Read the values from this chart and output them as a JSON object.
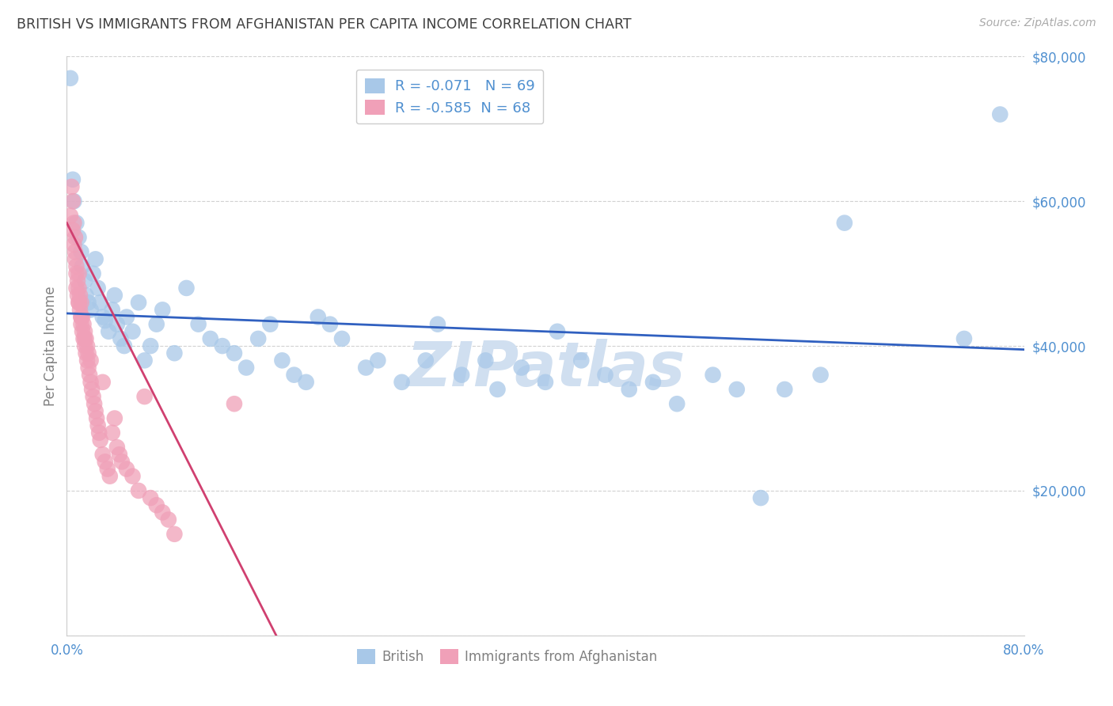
{
  "title": "BRITISH VS IMMIGRANTS FROM AFGHANISTAN PER CAPITA INCOME CORRELATION CHART",
  "source": "Source: ZipAtlas.com",
  "ylabel": "Per Capita Income",
  "xlim": [
    0.0,
    0.8
  ],
  "ylim": [
    0,
    80000
  ],
  "yticks": [
    0,
    20000,
    40000,
    60000,
    80000
  ],
  "xticks": [
    0.0,
    0.2,
    0.4,
    0.6,
    0.8
  ],
  "xtick_labels": [
    "0.0%",
    "",
    "",
    "",
    "80.0%"
  ],
  "british_R": -0.071,
  "british_N": 69,
  "afghan_R": -0.585,
  "afghan_N": 68,
  "blue_color": "#a8c8e8",
  "pink_color": "#f0a0b8",
  "blue_line_color": "#3060c0",
  "pink_line_color": "#d04070",
  "title_color": "#404040",
  "axis_label_color": "#808080",
  "tick_color": "#5090d0",
  "watermark_color": "#d0dff0",
  "background_color": "#ffffff",
  "british_x": [
    0.003,
    0.005,
    0.006,
    0.008,
    0.01,
    0.012,
    0.013,
    0.015,
    0.016,
    0.018,
    0.02,
    0.022,
    0.024,
    0.026,
    0.028,
    0.03,
    0.032,
    0.035,
    0.038,
    0.04,
    0.042,
    0.045,
    0.048,
    0.05,
    0.055,
    0.06,
    0.065,
    0.07,
    0.075,
    0.08,
    0.09,
    0.1,
    0.11,
    0.12,
    0.13,
    0.14,
    0.15,
    0.16,
    0.17,
    0.18,
    0.19,
    0.2,
    0.21,
    0.22,
    0.23,
    0.25,
    0.26,
    0.28,
    0.3,
    0.31,
    0.33,
    0.35,
    0.36,
    0.38,
    0.4,
    0.41,
    0.43,
    0.45,
    0.47,
    0.49,
    0.51,
    0.54,
    0.56,
    0.58,
    0.6,
    0.63,
    0.65,
    0.75,
    0.78
  ],
  "british_y": [
    77000,
    63000,
    60000,
    57000,
    55000,
    53000,
    51000,
    49000,
    47000,
    46000,
    45000,
    50000,
    52000,
    48000,
    46000,
    44000,
    43500,
    42000,
    45000,
    47000,
    43000,
    41000,
    40000,
    44000,
    42000,
    46000,
    38000,
    40000,
    43000,
    45000,
    39000,
    48000,
    43000,
    41000,
    40000,
    39000,
    37000,
    41000,
    43000,
    38000,
    36000,
    35000,
    44000,
    43000,
    41000,
    37000,
    38000,
    35000,
    38000,
    43000,
    36000,
    38000,
    34000,
    37000,
    35000,
    42000,
    38000,
    36000,
    34000,
    35000,
    32000,
    36000,
    34000,
    19000,
    34000,
    36000,
    57000,
    41000,
    72000
  ],
  "afghan_x": [
    0.003,
    0.004,
    0.005,
    0.005,
    0.006,
    0.006,
    0.007,
    0.007,
    0.007,
    0.008,
    0.008,
    0.008,
    0.009,
    0.009,
    0.01,
    0.01,
    0.01,
    0.011,
    0.011,
    0.012,
    0.012,
    0.012,
    0.013,
    0.013,
    0.014,
    0.014,
    0.015,
    0.015,
    0.016,
    0.016,
    0.017,
    0.017,
    0.018,
    0.018,
    0.019,
    0.02,
    0.021,
    0.022,
    0.023,
    0.024,
    0.025,
    0.026,
    0.027,
    0.028,
    0.03,
    0.032,
    0.034,
    0.036,
    0.038,
    0.04,
    0.042,
    0.044,
    0.046,
    0.05,
    0.055,
    0.06,
    0.065,
    0.07,
    0.075,
    0.08,
    0.085,
    0.09,
    0.01,
    0.012,
    0.015,
    0.02,
    0.03,
    0.14
  ],
  "afghan_y": [
    58000,
    62000,
    56000,
    60000,
    54000,
    57000,
    52000,
    55000,
    53000,
    50000,
    48000,
    51000,
    49000,
    47000,
    46000,
    48000,
    50000,
    45000,
    47000,
    44000,
    46000,
    43000,
    42000,
    44000,
    41000,
    43000,
    40000,
    42000,
    39000,
    41000,
    38000,
    40000,
    37000,
    39000,
    36000,
    35000,
    34000,
    33000,
    32000,
    31000,
    30000,
    29000,
    28000,
    27000,
    25000,
    24000,
    23000,
    22000,
    28000,
    30000,
    26000,
    25000,
    24000,
    23000,
    22000,
    20000,
    33000,
    19000,
    18000,
    17000,
    16000,
    14000,
    46000,
    44000,
    41000,
    38000,
    35000,
    32000
  ],
  "blue_line_x": [
    0.0,
    0.8
  ],
  "blue_line_y": [
    44500,
    39500
  ],
  "pink_line_x": [
    0.0,
    0.175
  ],
  "pink_line_y": [
    57000,
    0
  ]
}
